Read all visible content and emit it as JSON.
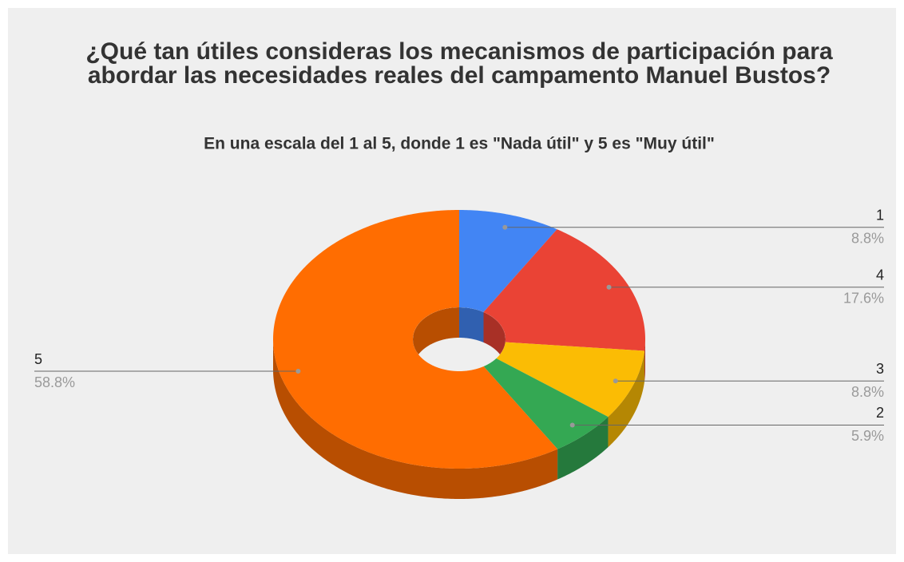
{
  "chart_data": {
    "type": "pie",
    "title": "¿Qué tan útiles consideras los mecanismos de participación para abordar las necesidades reales del campamento Manuel Bustos?",
    "subtitle": "En una escala del 1 al 5, donde 1 es \"Nada útil\" y 5 es \"Muy útil\"",
    "categories": [
      "1",
      "4",
      "3",
      "2",
      "5"
    ],
    "values": [
      8.8,
      17.6,
      8.8,
      5.9,
      58.8
    ],
    "value_labels": [
      "8.8%",
      "17.6%",
      "8.8%",
      "5.9%",
      "58.8%"
    ],
    "colors": [
      "#4285f4",
      "#ea4335",
      "#fbbc04",
      "#34a853",
      "#ff6d01"
    ],
    "donut": true,
    "three_d": true
  }
}
